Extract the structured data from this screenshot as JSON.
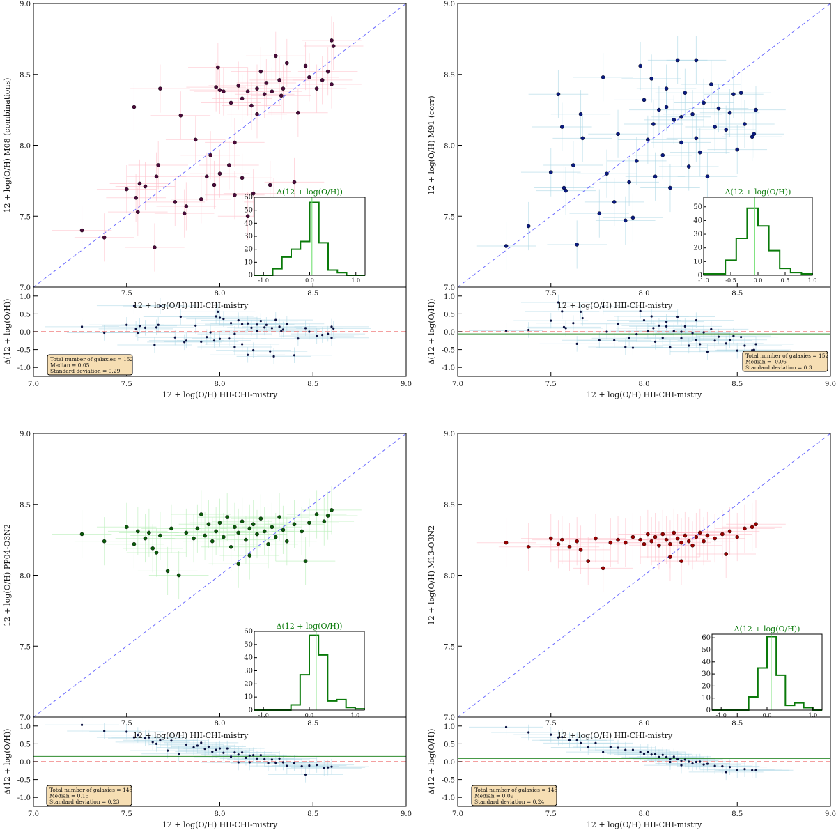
{
  "colors": {
    "diagonal": "#6a6aff",
    "zero_line": "#f08080",
    "median_line": "#2e8b2e",
    "hist": "#0a7a0a",
    "hist_median": "#66dd66",
    "residual_points": "#0a1040",
    "residual_errors": "#add8e6",
    "legend_bg": "#f6deb3"
  },
  "chart_data": [
    {
      "type": "scatter",
      "xlabel": "12 + log(O/H) HII-CHI-mistry",
      "ylabel": "12 + log(O/H) M08 (combinations)",
      "xlim": [
        7.0,
        9.0
      ],
      "ylim": [
        7.0,
        9.0
      ],
      "xticks": [
        "7.0",
        "7.5",
        "8.0",
        "8.5",
        "9.0"
      ],
      "yticks": [
        "7.0",
        "7.5",
        "8.0",
        "8.5",
        "9.0"
      ],
      "point_color": "#4a0a3a",
      "error_color": "#ffc0cb",
      "points": [
        [
          7.26,
          7.4
        ],
        [
          7.38,
          7.35
        ],
        [
          7.5,
          7.69
        ],
        [
          7.54,
          8.27
        ],
        [
          7.55,
          7.63
        ],
        [
          7.56,
          7.53
        ],
        [
          7.57,
          7.73
        ],
        [
          7.6,
          7.71
        ],
        [
          7.65,
          7.28
        ],
        [
          7.66,
          7.78
        ],
        [
          7.67,
          7.86
        ],
        [
          7.68,
          8.4
        ],
        [
          7.76,
          7.6
        ],
        [
          7.79,
          8.21
        ],
        [
          7.81,
          7.52
        ],
        [
          7.82,
          7.57
        ],
        [
          7.87,
          8.04
        ],
        [
          7.9,
          7.62
        ],
        [
          7.93,
          7.78
        ],
        [
          7.95,
          7.93
        ],
        [
          7.97,
          7.72
        ],
        [
          7.98,
          8.41
        ],
        [
          7.99,
          8.55
        ],
        [
          8.0,
          7.8
        ],
        [
          8.02,
          8.38
        ],
        [
          8.05,
          7.86
        ],
        [
          8.08,
          7.65
        ],
        [
          8.08,
          8.02
        ],
        [
          8.1,
          8.42
        ],
        [
          8.12,
          7.77
        ],
        [
          8.15,
          8.38
        ],
        [
          8.17,
          8.28
        ],
        [
          8.18,
          7.66
        ],
        [
          8.2,
          8.4
        ],
        [
          8.22,
          8.52
        ],
        [
          8.24,
          8.36
        ],
        [
          8.25,
          8.44
        ],
        [
          8.27,
          7.72
        ],
        [
          8.28,
          8.38
        ],
        [
          8.29,
          7.6
        ],
        [
          8.3,
          8.63
        ],
        [
          8.32,
          8.46
        ],
        [
          8.34,
          8.4
        ],
        [
          8.36,
          8.58
        ],
        [
          8.4,
          7.74
        ],
        [
          8.42,
          8.23
        ],
        [
          8.46,
          8.56
        ],
        [
          8.48,
          8.48
        ],
        [
          8.52,
          8.4
        ],
        [
          8.55,
          8.46
        ],
        [
          8.58,
          8.52
        ],
        [
          8.6,
          8.43
        ],
        [
          8.6,
          8.74
        ],
        [
          8.61,
          8.7
        ],
        [
          8.2,
          8.22
        ],
        [
          8.12,
          8.33
        ],
        [
          8.06,
          8.3
        ],
        [
          8.0,
          8.39
        ],
        [
          8.15,
          7.5
        ],
        [
          8.33,
          8.35
        ]
      ],
      "residual": {
        "ylabel": "Δ(12 + log(O/H))",
        "ylim": [
          -1.25,
          1.25
        ],
        "yticks": [
          "1.0",
          "0.5",
          "0.0",
          "-0.5",
          "-1.0"
        ],
        "median": 0.05,
        "legend": [
          "Total number of galaxies = 152",
          "Median = 0.05",
          "Standard deviation = 0.29"
        ]
      },
      "inset": {
        "type": "histogram",
        "title": "Δ(12 + log(O/H))",
        "xlim": [
          -1.2,
          1.2
        ],
        "ylim": [
          0,
          60
        ],
        "xticks": [
          "-1.0",
          "0.0",
          "1.0"
        ],
        "yticks": [
          "0",
          "10",
          "20",
          "30",
          "40",
          "50",
          "60"
        ],
        "bin_edges": [
          -0.8,
          -0.6,
          -0.4,
          -0.2,
          0.0,
          0.2,
          0.4,
          0.6,
          0.8
        ],
        "counts": [
          5,
          14,
          20,
          26,
          56,
          25,
          4,
          2
        ],
        "median": 0.05
      }
    },
    {
      "type": "scatter",
      "xlabel": "12 + log(O/H) HII-CHI-mistry",
      "ylabel": "12 + log(O/H) M91 (corr)",
      "xlim": [
        7.0,
        9.0
      ],
      "ylim": [
        7.0,
        9.0
      ],
      "xticks": [
        "7.0",
        "7.5",
        "8.0",
        "8.5",
        "9.0"
      ],
      "yticks": [
        "7.0",
        "7.5",
        "8.0",
        "8.5",
        "9.0"
      ],
      "point_color": "#0a1a80",
      "error_color": "#add8e6",
      "points": [
        [
          7.26,
          7.29
        ],
        [
          7.38,
          7.43
        ],
        [
          7.5,
          7.81
        ],
        [
          7.54,
          8.36
        ],
        [
          7.56,
          8.13
        ],
        [
          7.57,
          7.7
        ],
        [
          7.58,
          7.68
        ],
        [
          7.62,
          7.86
        ],
        [
          7.64,
          7.3
        ],
        [
          7.66,
          8.22
        ],
        [
          7.67,
          8.05
        ],
        [
          7.76,
          7.52
        ],
        [
          7.78,
          8.48
        ],
        [
          7.8,
          7.8
        ],
        [
          7.84,
          7.6
        ],
        [
          7.86,
          8.08
        ],
        [
          7.9,
          7.47
        ],
        [
          7.92,
          7.74
        ],
        [
          7.94,
          7.49
        ],
        [
          7.96,
          7.89
        ],
        [
          7.98,
          8.56
        ],
        [
          8.0,
          8.32
        ],
        [
          8.02,
          8.04
        ],
        [
          8.04,
          8.47
        ],
        [
          8.06,
          7.78
        ],
        [
          8.08,
          8.25
        ],
        [
          8.1,
          7.93
        ],
        [
          8.12,
          8.4
        ],
        [
          8.14,
          7.7
        ],
        [
          8.16,
          8.18
        ],
        [
          8.18,
          8.6
        ],
        [
          8.2,
          8.02
        ],
        [
          8.22,
          8.37
        ],
        [
          8.24,
          7.85
        ],
        [
          8.26,
          8.22
        ],
        [
          8.28,
          8.6
        ],
        [
          8.3,
          7.95
        ],
        [
          8.32,
          8.3
        ],
        [
          8.34,
          7.78
        ],
        [
          8.36,
          8.43
        ],
        [
          8.38,
          8.13
        ],
        [
          8.4,
          8.26
        ],
        [
          8.44,
          8.11
        ],
        [
          8.46,
          8.23
        ],
        [
          8.48,
          8.36
        ],
        [
          8.5,
          7.97
        ],
        [
          8.54,
          8.15
        ],
        [
          8.58,
          8.06
        ],
        [
          8.6,
          8.25
        ],
        [
          8.59,
          8.08
        ],
        [
          8.52,
          8.37
        ],
        [
          8.12,
          8.27
        ],
        [
          8.05,
          8.15
        ],
        [
          8.2,
          8.2
        ],
        [
          8.28,
          8.05
        ]
      ],
      "residual": {
        "ylabel": "Δ(12 + log(O/H))",
        "ylim": [
          -1.25,
          1.25
        ],
        "yticks": [
          "1.0",
          "0.5",
          "0.0",
          "-0.5",
          "-1.0"
        ],
        "median": -0.06,
        "legend": [
          "Total number of galaxies = 152",
          "Median = -0.06",
          "Standard deviation = 0.3"
        ]
      },
      "inset": {
        "type": "histogram",
        "title": "Δ(12 + log(O/H))",
        "xlim": [
          -1.0,
          1.0
        ],
        "ylim": [
          0,
          57
        ],
        "xticks": [
          "-1.0",
          "-0.5",
          "0.0",
          "0.5",
          "1.0"
        ],
        "yticks": [
          "0",
          "10",
          "20",
          "30",
          "40",
          "50"
        ],
        "bin_edges": [
          -1.0,
          -0.8,
          -0.6,
          -0.4,
          -0.2,
          0.0,
          0.2,
          0.4,
          0.6,
          0.8,
          1.0
        ],
        "counts": [
          1,
          1,
          11,
          27,
          49,
          36,
          18,
          5,
          2,
          1
        ],
        "median": -0.06
      }
    },
    {
      "type": "scatter",
      "xlabel": "12 + log(O/H) HII-CHI-mistry",
      "ylabel": "12 + log(O/H) PP04-O3N2",
      "xlim": [
        7.0,
        9.0
      ],
      "ylim": [
        7.0,
        9.0
      ],
      "xticks": [
        "7.0",
        "7.5",
        "8.0",
        "8.5",
        "9.0"
      ],
      "yticks": [
        "7.0",
        "7.5",
        "8.0",
        "8.5",
        "9.0"
      ],
      "point_color": "#0a5a0a",
      "error_color": "#b8f0b8",
      "points": [
        [
          7.26,
          8.29
        ],
        [
          7.38,
          8.24
        ],
        [
          7.5,
          8.34
        ],
        [
          7.54,
          8.22
        ],
        [
          7.56,
          8.31
        ],
        [
          7.6,
          8.26
        ],
        [
          7.62,
          8.3
        ],
        [
          7.64,
          8.19
        ],
        [
          7.66,
          8.16
        ],
        [
          7.68,
          8.28
        ],
        [
          7.72,
          8.03
        ],
        [
          7.74,
          8.33
        ],
        [
          7.78,
          8.0
        ],
        [
          7.82,
          8.3
        ],
        [
          7.86,
          8.26
        ],
        [
          7.88,
          8.33
        ],
        [
          7.9,
          8.43
        ],
        [
          7.92,
          8.28
        ],
        [
          7.94,
          8.36
        ],
        [
          7.96,
          8.24
        ],
        [
          7.98,
          8.31
        ],
        [
          8.0,
          8.37
        ],
        [
          8.02,
          8.27
        ],
        [
          8.04,
          8.41
        ],
        [
          8.06,
          8.2
        ],
        [
          8.08,
          8.34
        ],
        [
          8.1,
          8.3
        ],
        [
          8.12,
          8.38
        ],
        [
          8.14,
          8.25
        ],
        [
          8.16,
          8.33
        ],
        [
          8.18,
          8.36
        ],
        [
          8.2,
          8.29
        ],
        [
          8.22,
          8.4
        ],
        [
          8.24,
          8.31
        ],
        [
          8.26,
          8.22
        ],
        [
          8.28,
          8.34
        ],
        [
          8.3,
          8.27
        ],
        [
          8.32,
          8.41
        ],
        [
          8.34,
          8.32
        ],
        [
          8.36,
          8.24
        ],
        [
          8.4,
          8.36
        ],
        [
          8.44,
          8.31
        ],
        [
          8.46,
          8.1
        ],
        [
          8.48,
          8.37
        ],
        [
          8.52,
          8.43
        ],
        [
          8.56,
          8.38
        ],
        [
          8.58,
          8.42
        ],
        [
          8.6,
          8.46
        ],
        [
          8.16,
          8.14
        ],
        [
          8.1,
          8.08
        ]
      ],
      "residual": {
        "ylabel": "Δ(12 + log(O/H))",
        "ylim": [
          -1.25,
          1.25
        ],
        "yticks": [
          "1.0",
          "0.5",
          "0.0",
          "-0.5",
          "-1.0"
        ],
        "median": 0.15,
        "legend": [
          "Total number of galaxies = 148",
          "Median = 0.15",
          "Standard deviation = 0.23"
        ]
      },
      "inset": {
        "type": "histogram",
        "title": "Δ(12 + log(O/H))",
        "xlim": [
          -1.2,
          1.2
        ],
        "ylim": [
          0,
          60
        ],
        "xticks": [
          "-1.0",
          "0.0",
          "1.0"
        ],
        "yticks": [
          "0",
          "10",
          "20",
          "30",
          "40",
          "50",
          "60"
        ],
        "bin_edges": [
          -0.4,
          -0.2,
          0.0,
          0.2,
          0.4,
          0.6,
          0.8,
          1.0,
          1.2
        ],
        "counts": [
          4,
          27,
          57,
          42,
          7,
          8,
          2,
          1
        ],
        "median": 0.15
      }
    },
    {
      "type": "scatter",
      "xlabel": "12 + log(O/H) HII-CHI-mistry",
      "ylabel": "12 + log(O/H) M13-O3N2",
      "xlim": [
        7.0,
        9.0
      ],
      "ylim": [
        7.0,
        9.0
      ],
      "xticks": [
        "7.0",
        "7.5",
        "8.0",
        "8.5",
        "9.0"
      ],
      "yticks": [
        "7.0",
        "7.5",
        "8.0",
        "8.5",
        "9.0"
      ],
      "point_color": "#990000",
      "error_color": "#ffc0cb",
      "points": [
        [
          7.26,
          8.23
        ],
        [
          7.38,
          8.2
        ],
        [
          7.5,
          8.26
        ],
        [
          7.54,
          8.22
        ],
        [
          7.56,
          8.25
        ],
        [
          7.6,
          8.2
        ],
        [
          7.64,
          8.24
        ],
        [
          7.66,
          8.18
        ],
        [
          7.7,
          8.1
        ],
        [
          7.74,
          8.26
        ],
        [
          7.78,
          8.05
        ],
        [
          7.82,
          8.23
        ],
        [
          7.86,
          8.25
        ],
        [
          7.9,
          8.23
        ],
        [
          7.94,
          8.27
        ],
        [
          7.98,
          8.25
        ],
        [
          8.0,
          8.22
        ],
        [
          8.02,
          8.29
        ],
        [
          8.04,
          8.24
        ],
        [
          8.06,
          8.27
        ],
        [
          8.08,
          8.21
        ],
        [
          8.1,
          8.29
        ],
        [
          8.12,
          8.25
        ],
        [
          8.14,
          8.22
        ],
        [
          8.16,
          8.3
        ],
        [
          8.18,
          8.26
        ],
        [
          8.2,
          8.23
        ],
        [
          8.22,
          8.28
        ],
        [
          8.24,
          8.24
        ],
        [
          8.26,
          8.21
        ],
        [
          8.28,
          8.27
        ],
        [
          8.3,
          8.3
        ],
        [
          8.32,
          8.24
        ],
        [
          8.34,
          8.28
        ],
        [
          8.38,
          8.26
        ],
        [
          8.42,
          8.29
        ],
        [
          8.46,
          8.31
        ],
        [
          8.5,
          8.27
        ],
        [
          8.54,
          8.33
        ],
        [
          8.58,
          8.34
        ],
        [
          8.6,
          8.36
        ],
        [
          8.44,
          8.15
        ],
        [
          8.2,
          8.1
        ],
        [
          8.14,
          8.13
        ]
      ],
      "residual": {
        "ylabel": "Δ(12 + log(O/H))",
        "ylim": [
          -1.25,
          1.25
        ],
        "yticks": [
          "1.0",
          "0.5",
          "0.0",
          "-0.5",
          "-1.0"
        ],
        "median": 0.09,
        "legend": [
          "Total number of galaxies = 148",
          "Median = 0.09",
          "Standard deviation = 0.24"
        ]
      },
      "inset": {
        "type": "histogram",
        "title": "Δ(12 + log(O/H))",
        "xlim": [
          -1.2,
          1.2
        ],
        "ylim": [
          0,
          63
        ],
        "xticks": [
          "-1.0",
          "0.0",
          "1.0"
        ],
        "yticks": [
          "0",
          "10",
          "20",
          "30",
          "40",
          "50",
          "60"
        ],
        "bin_edges": [
          -0.4,
          -0.2,
          0.0,
          0.2,
          0.4,
          0.6,
          0.8,
          1.0
        ],
        "counts": [
          11,
          35,
          61,
          29,
          4,
          6,
          2
        ],
        "median": 0.09
      }
    }
  ]
}
